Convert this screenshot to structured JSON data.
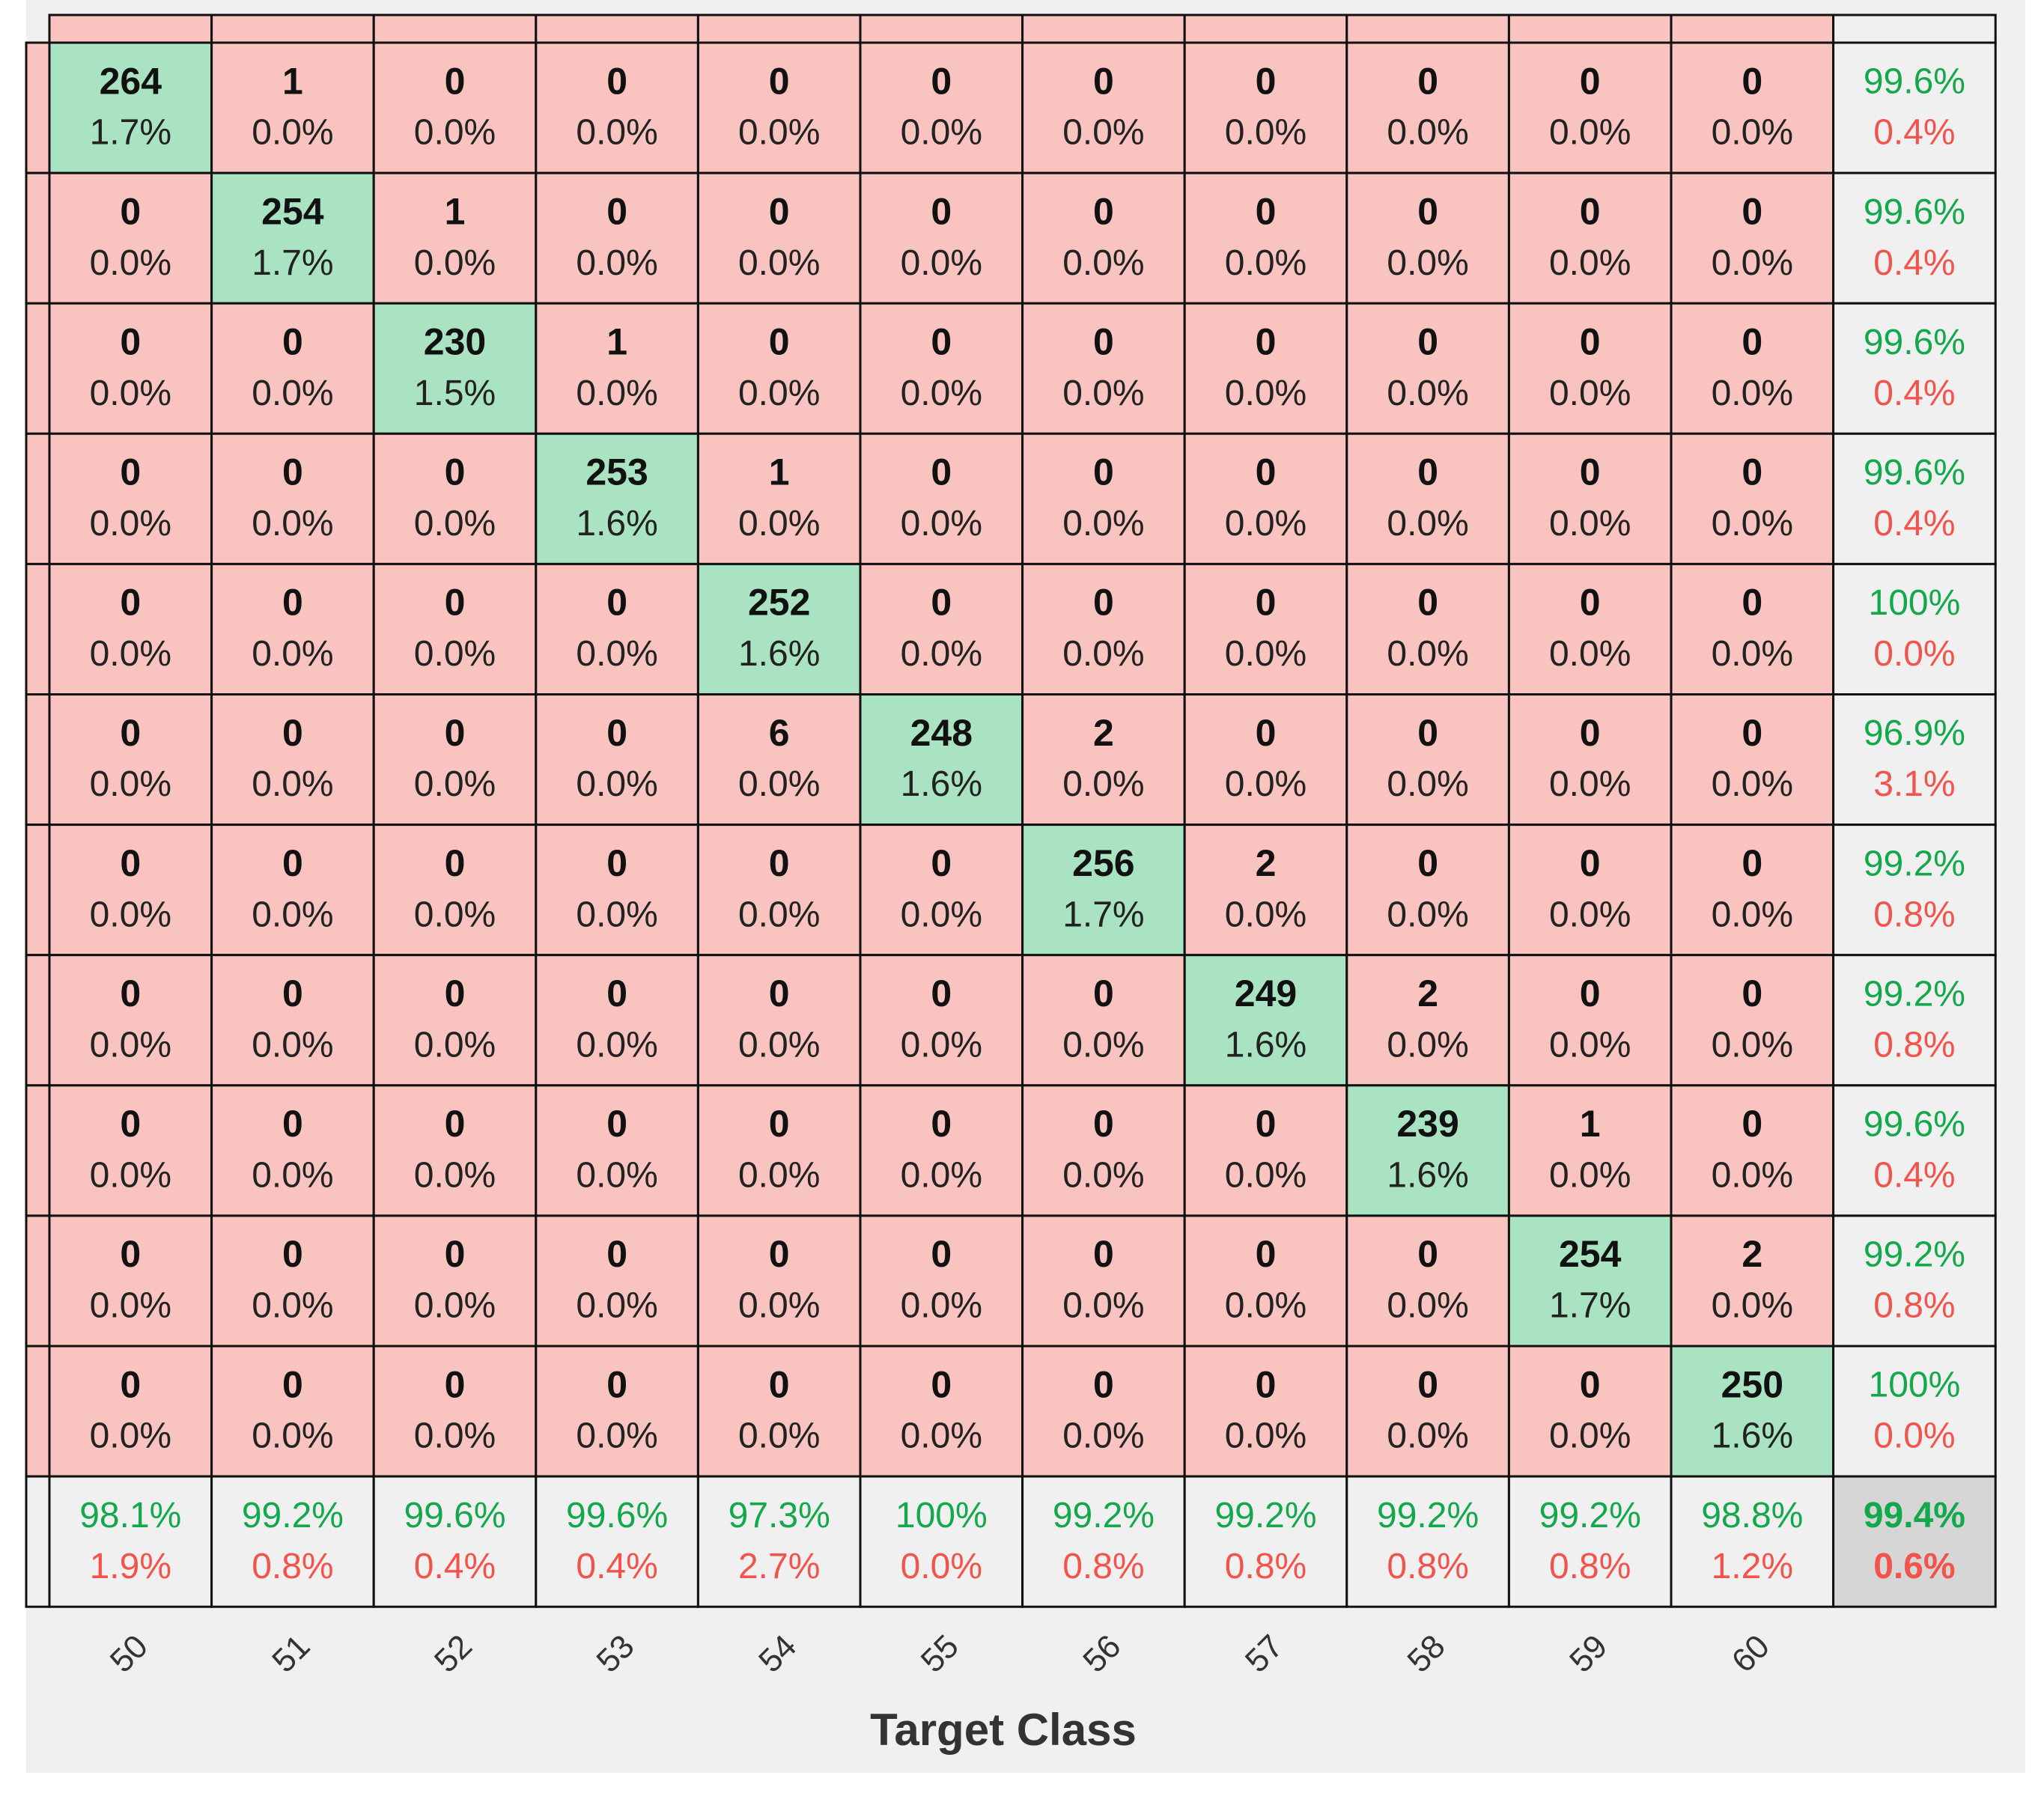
{
  "matrix": {
    "rows": [
      {
        "counts": [
          264,
          1,
          0,
          0,
          0,
          0,
          0,
          0,
          0,
          0,
          0
        ],
        "percents": [
          "1.7%",
          "0.0%",
          "0.0%",
          "0.0%",
          "0.0%",
          "0.0%",
          "0.0%",
          "0.0%",
          "0.0%",
          "0.0%",
          "0.0%"
        ],
        "correct": "99.6%",
        "wrong": "0.4%"
      },
      {
        "counts": [
          0,
          254,
          1,
          0,
          0,
          0,
          0,
          0,
          0,
          0,
          0
        ],
        "percents": [
          "0.0%",
          "1.7%",
          "0.0%",
          "0.0%",
          "0.0%",
          "0.0%",
          "0.0%",
          "0.0%",
          "0.0%",
          "0.0%",
          "0.0%"
        ],
        "correct": "99.6%",
        "wrong": "0.4%"
      },
      {
        "counts": [
          0,
          0,
          230,
          1,
          0,
          0,
          0,
          0,
          0,
          0,
          0
        ],
        "percents": [
          "0.0%",
          "0.0%",
          "1.5%",
          "0.0%",
          "0.0%",
          "0.0%",
          "0.0%",
          "0.0%",
          "0.0%",
          "0.0%",
          "0.0%"
        ],
        "correct": "99.6%",
        "wrong": "0.4%"
      },
      {
        "counts": [
          0,
          0,
          0,
          253,
          1,
          0,
          0,
          0,
          0,
          0,
          0
        ],
        "percents": [
          "0.0%",
          "0.0%",
          "0.0%",
          "1.6%",
          "0.0%",
          "0.0%",
          "0.0%",
          "0.0%",
          "0.0%",
          "0.0%",
          "0.0%"
        ],
        "correct": "99.6%",
        "wrong": "0.4%"
      },
      {
        "counts": [
          0,
          0,
          0,
          0,
          252,
          0,
          0,
          0,
          0,
          0,
          0
        ],
        "percents": [
          "0.0%",
          "0.0%",
          "0.0%",
          "0.0%",
          "1.6%",
          "0.0%",
          "0.0%",
          "0.0%",
          "0.0%",
          "0.0%",
          "0.0%"
        ],
        "correct": "100%",
        "wrong": "0.0%"
      },
      {
        "counts": [
          0,
          0,
          0,
          0,
          6,
          248,
          2,
          0,
          0,
          0,
          0
        ],
        "percents": [
          "0.0%",
          "0.0%",
          "0.0%",
          "0.0%",
          "0.0%",
          "1.6%",
          "0.0%",
          "0.0%",
          "0.0%",
          "0.0%",
          "0.0%"
        ],
        "correct": "96.9%",
        "wrong": "3.1%"
      },
      {
        "counts": [
          0,
          0,
          0,
          0,
          0,
          0,
          256,
          2,
          0,
          0,
          0
        ],
        "percents": [
          "0.0%",
          "0.0%",
          "0.0%",
          "0.0%",
          "0.0%",
          "0.0%",
          "1.7%",
          "0.0%",
          "0.0%",
          "0.0%",
          "0.0%"
        ],
        "correct": "99.2%",
        "wrong": "0.8%"
      },
      {
        "counts": [
          0,
          0,
          0,
          0,
          0,
          0,
          0,
          249,
          2,
          0,
          0
        ],
        "percents": [
          "0.0%",
          "0.0%",
          "0.0%",
          "0.0%",
          "0.0%",
          "0.0%",
          "0.0%",
          "1.6%",
          "0.0%",
          "0.0%",
          "0.0%"
        ],
        "correct": "99.2%",
        "wrong": "0.8%"
      },
      {
        "counts": [
          0,
          0,
          0,
          0,
          0,
          0,
          0,
          0,
          239,
          1,
          0
        ],
        "percents": [
          "0.0%",
          "0.0%",
          "0.0%",
          "0.0%",
          "0.0%",
          "0.0%",
          "0.0%",
          "0.0%",
          "1.6%",
          "0.0%",
          "0.0%"
        ],
        "correct": "99.6%",
        "wrong": "0.4%"
      },
      {
        "counts": [
          0,
          0,
          0,
          0,
          0,
          0,
          0,
          0,
          0,
          254,
          2
        ],
        "percents": [
          "0.0%",
          "0.0%",
          "0.0%",
          "0.0%",
          "0.0%",
          "0.0%",
          "0.0%",
          "0.0%",
          "0.0%",
          "1.7%",
          "0.0%"
        ],
        "correct": "99.2%",
        "wrong": "0.8%"
      },
      {
        "counts": [
          0,
          0,
          0,
          0,
          0,
          0,
          0,
          0,
          0,
          0,
          250
        ],
        "percents": [
          "0.0%",
          "0.0%",
          "0.0%",
          "0.0%",
          "0.0%",
          "0.0%",
          "0.0%",
          "0.0%",
          "0.0%",
          "0.0%",
          "1.6%"
        ],
        "correct": "100%",
        "wrong": "0.0%"
      }
    ],
    "column_summary": {
      "correct": [
        "98.1%",
        "99.2%",
        "99.6%",
        "99.6%",
        "97.3%",
        "100%",
        "99.2%",
        "99.2%",
        "99.2%",
        "99.2%",
        "98.8%"
      ],
      "wrong": [
        "1.9%",
        "0.8%",
        "0.4%",
        "0.4%",
        "2.7%",
        "0.0%",
        "0.8%",
        "0.8%",
        "0.8%",
        "0.8%",
        "1.2%"
      ]
    },
    "total": {
      "correct": "99.4%",
      "wrong": "0.6%"
    },
    "x_labels": [
      "50",
      "51",
      "52",
      "53",
      "54",
      "55",
      "56",
      "57",
      "58",
      "59",
      "60"
    ],
    "x_title": "Target Class"
  }
}
